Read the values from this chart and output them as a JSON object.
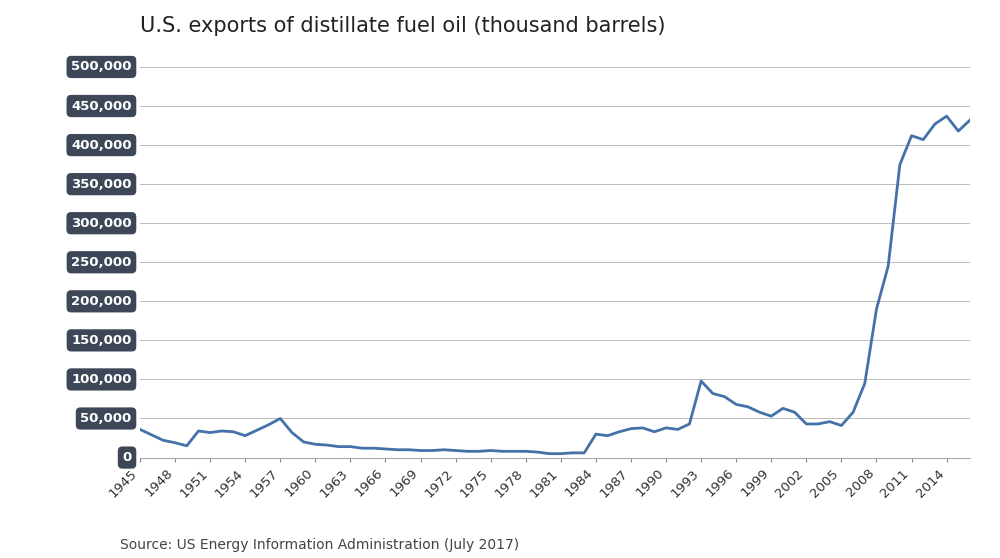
{
  "title": "U.S. exports of distillate fuel oil (thousand barrels)",
  "source_text": "Source: US Energy Information Administration (July 2017)",
  "line_color": "#4472a8",
  "background_color": "#ffffff",
  "plot_bg_color": "#ffffff",
  "ylabel_bg_color": "#3d4757",
  "ylabel_text_color": "#ffffff",
  "grid_color": "#bbbbbb",
  "title_fontsize": 15,
  "tick_fontsize": 9.5,
  "source_fontsize": 10,
  "ylim": [
    0,
    500000
  ],
  "yticks": [
    0,
    50000,
    100000,
    150000,
    200000,
    250000,
    300000,
    350000,
    400000,
    450000,
    500000
  ],
  "ytick_labels": [
    "0",
    "50,000",
    "100,000",
    "150,000",
    "200,000",
    "250,000",
    "300,000",
    "350,000",
    "400,000",
    "450,000",
    "500,000"
  ],
  "years": [
    1945,
    1946,
    1947,
    1948,
    1949,
    1950,
    1951,
    1952,
    1953,
    1954,
    1955,
    1956,
    1957,
    1958,
    1959,
    1960,
    1961,
    1962,
    1963,
    1964,
    1965,
    1966,
    1967,
    1968,
    1969,
    1970,
    1971,
    1972,
    1973,
    1974,
    1975,
    1976,
    1977,
    1978,
    1979,
    1980,
    1981,
    1982,
    1983,
    1984,
    1985,
    1986,
    1987,
    1988,
    1989,
    1990,
    1991,
    1992,
    1993,
    1994,
    1995,
    1996,
    1997,
    1998,
    1999,
    2000,
    2001,
    2002,
    2003,
    2004,
    2005,
    2006,
    2007,
    2008,
    2009,
    2010,
    2011,
    2012,
    2013,
    2014,
    2015,
    2016
  ],
  "values": [
    36000,
    29000,
    22000,
    19000,
    15000,
    34000,
    32000,
    34000,
    33000,
    28000,
    35000,
    42000,
    50000,
    32000,
    20000,
    17000,
    16000,
    14000,
    14000,
    12000,
    12000,
    11000,
    10000,
    10000,
    9000,
    9000,
    10000,
    9000,
    8000,
    8000,
    9000,
    8000,
    8000,
    8000,
    7000,
    5000,
    5000,
    6000,
    6000,
    30000,
    28000,
    33000,
    37000,
    38000,
    33000,
    38000,
    36000,
    43000,
    98000,
    82000,
    78000,
    68000,
    65000,
    58000,
    53000,
    63000,
    58000,
    43000,
    43000,
    46000,
    41000,
    58000,
    95000,
    190000,
    245000,
    375000,
    412000,
    407000,
    427000,
    437000,
    418000,
    432000
  ]
}
